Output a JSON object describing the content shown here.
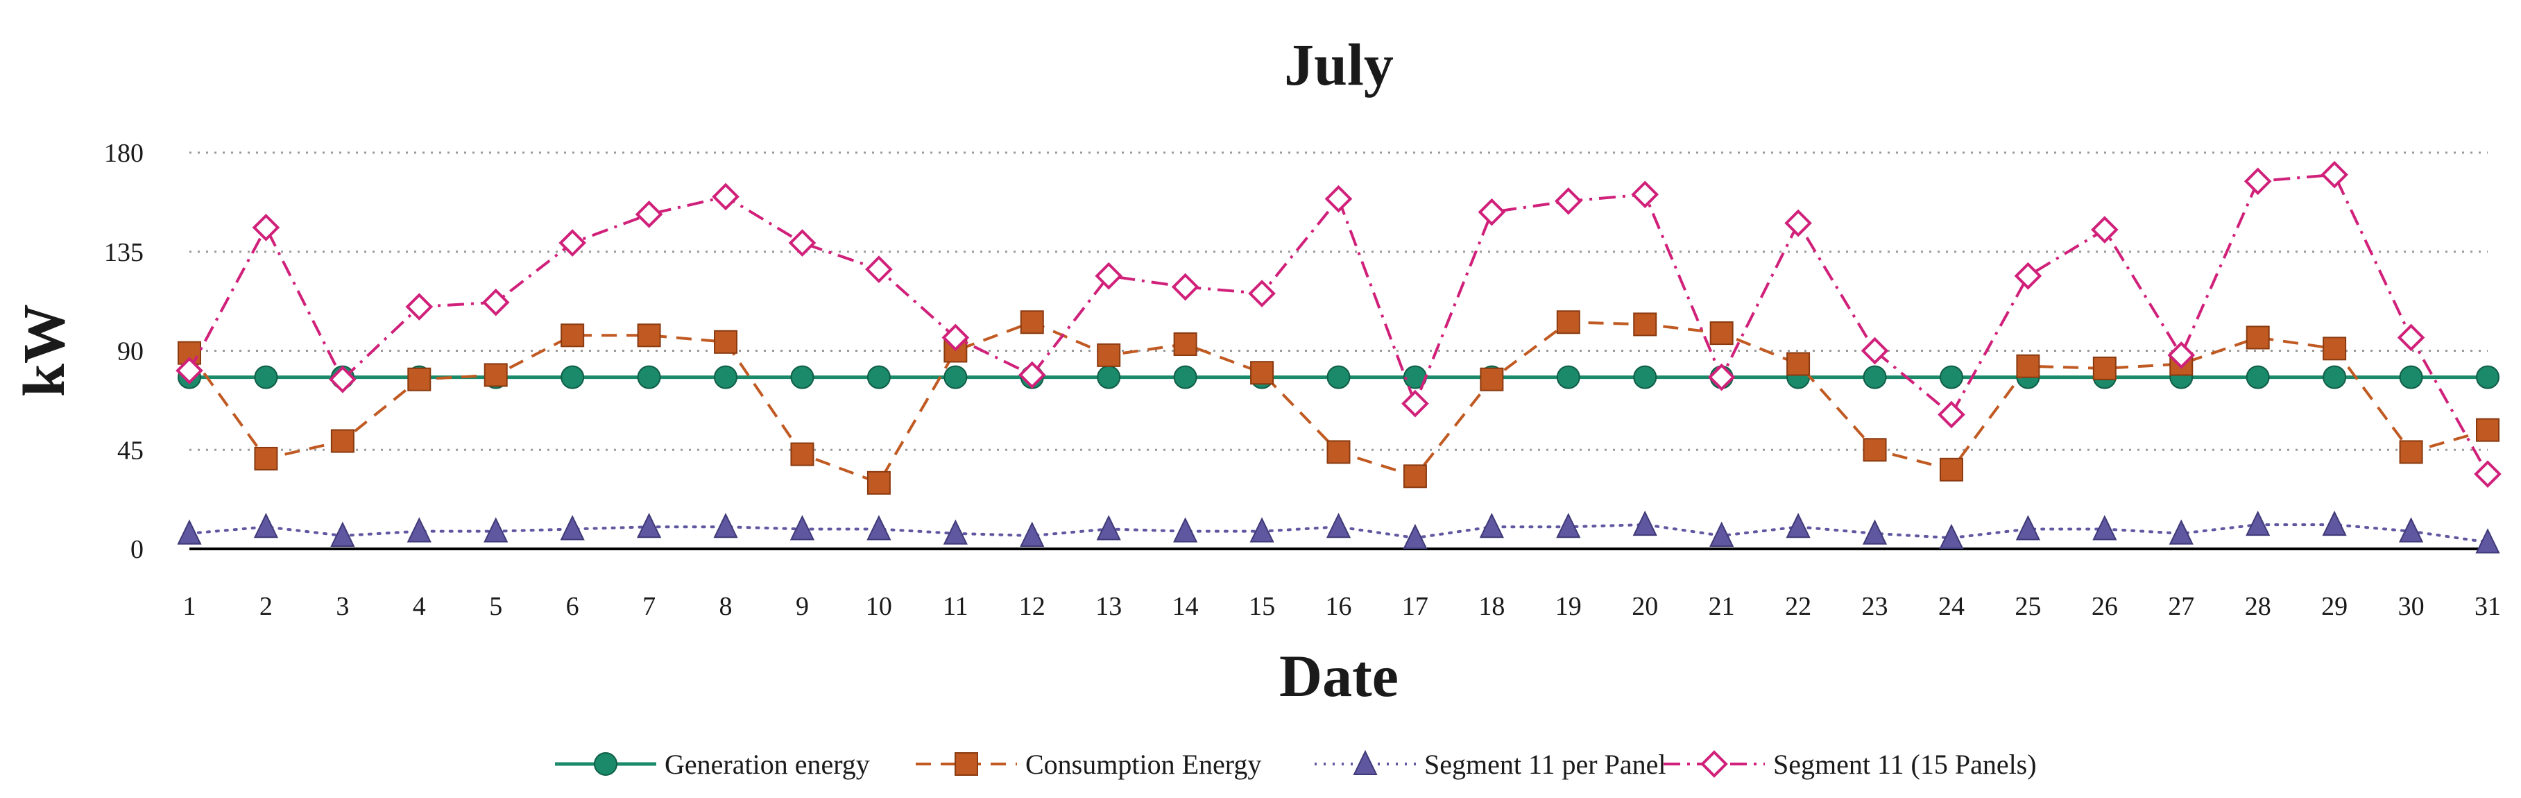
{
  "chart_data": {
    "type": "line",
    "title": "July",
    "xlabel": "Date",
    "ylabel": "kW",
    "ylim": [
      0,
      180
    ],
    "yticks": [
      0,
      45,
      90,
      135,
      180
    ],
    "grid": true,
    "legend_position": "bottom",
    "x": [
      1,
      2,
      3,
      4,
      5,
      6,
      7,
      8,
      9,
      10,
      11,
      12,
      13,
      14,
      15,
      16,
      17,
      18,
      19,
      20,
      21,
      22,
      23,
      24,
      25,
      26,
      27,
      28,
      29,
      30,
      31
    ],
    "series": [
      {
        "name": "Generation energy",
        "color": "#1a8a6a",
        "marker": "circle",
        "line": "solid",
        "values": [
          78,
          78,
          78,
          78,
          78,
          78,
          78,
          78,
          78,
          78,
          78,
          78,
          78,
          78,
          78,
          78,
          78,
          78,
          78,
          78,
          78,
          78,
          78,
          78,
          78,
          78,
          78,
          78,
          78,
          78,
          78
        ]
      },
      {
        "name": "Consumption Energy",
        "color": "#c05a22",
        "marker": "square",
        "line": "dashed",
        "values": [
          89,
          41,
          49,
          77,
          79,
          97,
          97,
          94,
          43,
          30,
          90,
          103,
          88,
          93,
          80,
          44,
          33,
          77,
          103,
          102,
          98,
          84,
          45,
          36,
          83,
          82,
          84,
          96,
          91,
          44,
          54
        ]
      },
      {
        "name": "Segment 11 per Panel",
        "color": "#5f57a0",
        "marker": "triangle",
        "line": "dotted",
        "values": [
          7,
          10,
          6,
          8,
          8,
          9,
          10,
          10,
          9,
          9,
          7,
          6,
          9,
          8,
          8,
          10,
          5,
          10,
          10,
          11,
          6,
          10,
          7,
          5,
          9,
          9,
          7,
          11,
          11,
          8,
          3
        ]
      },
      {
        "name": "Segment 11 (15 Panels)",
        "color": "#d0207a",
        "marker": "diamond",
        "line": "dashdot",
        "values": [
          81,
          146,
          77,
          110,
          112,
          139,
          152,
          160,
          139,
          127,
          96,
          79,
          124,
          119,
          116,
          159,
          66,
          153,
          158,
          161,
          78,
          148,
          90,
          61,
          124,
          145,
          88,
          167,
          170,
          96,
          34
        ]
      }
    ]
  }
}
